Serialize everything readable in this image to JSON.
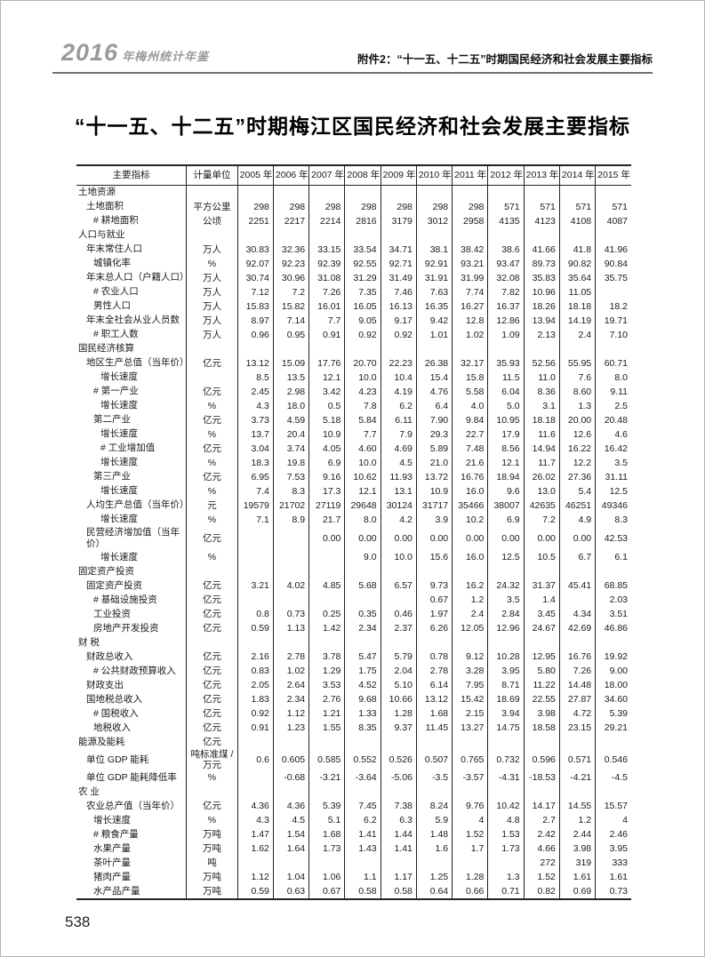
{
  "header": {
    "logo_year": "2016",
    "logo_suffix": "年梅州统计年鉴",
    "attachment": "附件2：“十一五、十二五”时期国民经济和社会发展主要指标"
  },
  "title": "“十一五、十二五”时期梅江区国民经济和社会发展主要指标",
  "page_number": "538",
  "table": {
    "columns": [
      "主要指标",
      "计量单位",
      "2005 年",
      "2006 年",
      "2007 年",
      "2008 年",
      "2009 年",
      "2010 年",
      "2011 年",
      "2012 年",
      "2013 年",
      "2014 年",
      "2015 年"
    ],
    "rows": [
      {
        "label": "土地资源",
        "unit": "",
        "indent": 0,
        "section": true,
        "values": [
          "",
          "",
          "",
          "",
          "",
          "",
          "",
          "",
          "",
          "",
          ""
        ]
      },
      {
        "label": "土地面积",
        "unit": "平方公里",
        "indent": 1,
        "values": [
          "298",
          "298",
          "298",
          "298",
          "298",
          "298",
          "298",
          "571",
          "571",
          "571",
          "571"
        ]
      },
      {
        "label": "# 耕地面积",
        "unit": "公顷",
        "indent": 2,
        "values": [
          "2251",
          "2217",
          "2214",
          "2816",
          "3179",
          "3012",
          "2958",
          "4135",
          "4123",
          "4108",
          "4087"
        ]
      },
      {
        "label": "人口与就业",
        "unit": "",
        "indent": 0,
        "section": true,
        "values": [
          "",
          "",
          "",
          "",
          "",
          "",
          "",
          "",
          "",
          "",
          ""
        ]
      },
      {
        "label": "年末常住人口",
        "unit": "万人",
        "indent": 1,
        "values": [
          "30.83",
          "32.36",
          "33.15",
          "33.54",
          "34.71",
          "38.1",
          "38.42",
          "38.6",
          "41.66",
          "41.8",
          "41.96"
        ]
      },
      {
        "label": "城镇化率",
        "unit": "%",
        "indent": 2,
        "values": [
          "92.07",
          "92.23",
          "92.39",
          "92.55",
          "92.71",
          "92.91",
          "93.21",
          "93.47",
          "89.73",
          "90.82",
          "90.84"
        ]
      },
      {
        "label": "年末总人口（户籍人口）",
        "unit": "万人",
        "indent": 1,
        "values": [
          "30.74",
          "30.96",
          "31.08",
          "31.29",
          "31.49",
          "31.91",
          "31.99",
          "32.08",
          "35.83",
          "35.64",
          "35.75"
        ]
      },
      {
        "label": "# 农业人口",
        "unit": "万人",
        "indent": 2,
        "values": [
          "7.12",
          "7.2",
          "7.26",
          "7.35",
          "7.46",
          "7.63",
          "7.74",
          "7.82",
          "10.96",
          "11.05",
          ""
        ]
      },
      {
        "label": "男性人口",
        "unit": "万人",
        "indent": 2,
        "values": [
          "15.83",
          "15.82",
          "16.01",
          "16.05",
          "16.13",
          "16.35",
          "16.27",
          "16.37",
          "18.26",
          "18.18",
          "18.2"
        ]
      },
      {
        "label": "年末全社会从业人员数",
        "unit": "万人",
        "indent": 1,
        "values": [
          "8.97",
          "7.14",
          "7.7",
          "9.05",
          "9.17",
          "9.42",
          "12.8",
          "12.86",
          "13.94",
          "14.19",
          "19.71"
        ]
      },
      {
        "label": "# 职工人数",
        "unit": "万人",
        "indent": 2,
        "values": [
          "0.96",
          "0.95",
          "0.91",
          "0.92",
          "0.92",
          "1.01",
          "1.02",
          "1.09",
          "2.13",
          "2.4",
          "7.10"
        ]
      },
      {
        "label": "国民经济核算",
        "unit": "",
        "indent": 0,
        "section": true,
        "values": [
          "",
          "",
          "",
          "",
          "",
          "",
          "",
          "",
          "",
          "",
          ""
        ]
      },
      {
        "label": "地区生产总值（当年价）",
        "unit": "亿元",
        "indent": 1,
        "values": [
          "13.12",
          "15.09",
          "17.76",
          "20.70",
          "22.23",
          "26.38",
          "32.17",
          "35.93",
          "52.56",
          "55.95",
          "60.71"
        ]
      },
      {
        "label": "增长速度",
        "unit": "",
        "indent": 3,
        "values": [
          "8.5",
          "13.5",
          "12.1",
          "10.0",
          "10.4",
          "15.4",
          "15.8",
          "11.5",
          "11.0",
          "7.6",
          "8.0"
        ]
      },
      {
        "label": "# 第一产业",
        "unit": "亿元",
        "indent": 2,
        "values": [
          "2.45",
          "2.98",
          "3.42",
          "4.23",
          "4.19",
          "4.76",
          "5.58",
          "6.04",
          "8.36",
          "8.60",
          "9.11"
        ]
      },
      {
        "label": "增长速度",
        "unit": "%",
        "indent": 3,
        "values": [
          "4.3",
          "18.0",
          "0.5",
          "7.8",
          "6.2",
          "6.4",
          "4.0",
          "5.0",
          "3.1",
          "1.3",
          "2.5"
        ]
      },
      {
        "label": "第二产业",
        "unit": "亿元",
        "indent": 2,
        "values": [
          "3.73",
          "4.59",
          "5.18",
          "5.84",
          "6.11",
          "7.90",
          "9.84",
          "10.95",
          "18.18",
          "20.00",
          "20.48"
        ]
      },
      {
        "label": "增长速度",
        "unit": "%",
        "indent": 3,
        "values": [
          "13.7",
          "20.4",
          "10.9",
          "7.7",
          "7.9",
          "29.3",
          "22.7",
          "17.9",
          "11.6",
          "12.6",
          "4.6"
        ]
      },
      {
        "label": "# 工业增加值",
        "unit": "亿元",
        "indent": 3,
        "values": [
          "3.04",
          "3.74",
          "4.05",
          "4.60",
          "4.69",
          "5.89",
          "7.48",
          "8.56",
          "14.94",
          "16.22",
          "16.42"
        ]
      },
      {
        "label": "增长速度",
        "unit": "%",
        "indent": 3,
        "values": [
          "18.3",
          "19.8",
          "6.9",
          "10.0",
          "4.5",
          "21.0",
          "21.6",
          "12.1",
          "11.7",
          "12.2",
          "3.5"
        ]
      },
      {
        "label": "第三产业",
        "unit": "亿元",
        "indent": 2,
        "values": [
          "6.95",
          "7.53",
          "9.16",
          "10.62",
          "11.93",
          "13.72",
          "16.76",
          "18.94",
          "26.02",
          "27.36",
          "31.11"
        ]
      },
      {
        "label": "增长速度",
        "unit": "%",
        "indent": 3,
        "values": [
          "7.4",
          "8.3",
          "17.3",
          "12.1",
          "13.1",
          "10.9",
          "16.0",
          "9.6",
          "13.0",
          "5.4",
          "12.5"
        ]
      },
      {
        "label": "人均生产总值（当年价）",
        "unit": "元",
        "indent": 1,
        "values": [
          "19579",
          "21702",
          "27119",
          "29648",
          "30124",
          "31717",
          "35466",
          "38007",
          "42635",
          "46251",
          "49346"
        ]
      },
      {
        "label": "增长速度",
        "unit": "%",
        "indent": 3,
        "values": [
          "7.1",
          "8.9",
          "21.7",
          "8.0",
          "4.2",
          "3.9",
          "10.2",
          "6.9",
          "7.2",
          "4.9",
          "8.3"
        ]
      },
      {
        "label": "民营经济增加值（当年价）",
        "unit": "亿元",
        "indent": 1,
        "values": [
          "",
          "",
          "0.00",
          "0.00",
          "0.00",
          "0.00",
          "0.00",
          "0.00",
          "0.00",
          "0.00",
          "42.53"
        ]
      },
      {
        "label": "增长速度",
        "unit": "%",
        "indent": 3,
        "values": [
          "",
          "",
          "",
          "9.0",
          "10.0",
          "15.6",
          "16.0",
          "12.5",
          "10.5",
          "6.7",
          "6.1"
        ]
      },
      {
        "label": "固定资产投资",
        "unit": "",
        "indent": 0,
        "section": true,
        "values": [
          "",
          "",
          "",
          "",
          "",
          "",
          "",
          "",
          "",
          "",
          ""
        ]
      },
      {
        "label": "固定资产投资",
        "unit": "亿元",
        "indent": 1,
        "values": [
          "3.21",
          "4.02",
          "4.85",
          "5.68",
          "6.57",
          "9.73",
          "16.2",
          "24.32",
          "31.37",
          "45.41",
          "68.85"
        ]
      },
      {
        "label": "# 基础设施投资",
        "unit": "亿元",
        "indent": 2,
        "values": [
          "",
          "",
          "",
          "",
          "",
          "0.67",
          "1.2",
          "3.5",
          "1.4",
          "",
          "2.03"
        ]
      },
      {
        "label": "工业投资",
        "unit": "亿元",
        "indent": 2,
        "values": [
          "0.8",
          "0.73",
          "0.25",
          "0.35",
          "0.46",
          "1.97",
          "2.4",
          "2.84",
          "3.45",
          "4.34",
          "3.51"
        ]
      },
      {
        "label": "房地产开发投资",
        "unit": "亿元",
        "indent": 2,
        "values": [
          "0.59",
          "1.13",
          "1.42",
          "2.34",
          "2.37",
          "6.26",
          "12.05",
          "12.96",
          "24.67",
          "42.69",
          "46.86"
        ]
      },
      {
        "label": "财 税",
        "unit": "",
        "indent": 0,
        "section": true,
        "values": [
          "",
          "",
          "",
          "",
          "",
          "",
          "",
          "",
          "",
          "",
          ""
        ]
      },
      {
        "label": "财政总收入",
        "unit": "亿元",
        "indent": 1,
        "values": [
          "2.16",
          "2.78",
          "3.78",
          "5.47",
          "5.79",
          "0.78",
          "9.12",
          "10.28",
          "12.95",
          "16.76",
          "19.92"
        ]
      },
      {
        "label": "# 公共财政预算收入",
        "unit": "亿元",
        "indent": 2,
        "values": [
          "0.83",
          "1.02",
          "1.29",
          "1.75",
          "2.04",
          "2.78",
          "3.28",
          "3.95",
          "5.80",
          "7.26",
          "9.00"
        ]
      },
      {
        "label": "财政支出",
        "unit": "亿元",
        "indent": 1,
        "values": [
          "2.05",
          "2.64",
          "3.53",
          "4.52",
          "5.10",
          "6.14",
          "7.95",
          "8.71",
          "11.22",
          "14.48",
          "18.00"
        ]
      },
      {
        "label": "国地税总收入",
        "unit": "亿元",
        "indent": 1,
        "values": [
          "1.83",
          "2.34",
          "2.76",
          "9.68",
          "10.66",
          "13.12",
          "15.42",
          "18.69",
          "22.55",
          "27.87",
          "34.60"
        ]
      },
      {
        "label": "# 国税收入",
        "unit": "亿元",
        "indent": 2,
        "values": [
          "0.92",
          "1.12",
          "1.21",
          "1.33",
          "1.28",
          "1.68",
          "2.15",
          "3.94",
          "3.98",
          "4.72",
          "5.39"
        ]
      },
      {
        "label": "地税收入",
        "unit": "亿元",
        "indent": 2,
        "values": [
          "0.91",
          "1.23",
          "1.55",
          "8.35",
          "9.37",
          "11.45",
          "13.27",
          "14.75",
          "18.58",
          "23.15",
          "29.21"
        ]
      },
      {
        "label": "能源及能耗",
        "unit": "亿元",
        "indent": 0,
        "section": true,
        "values": [
          "",
          "",
          "",
          "",
          "",
          "",
          "",
          "",
          "",
          "",
          ""
        ]
      },
      {
        "label": "单位 GDP 能耗",
        "unit": "吨标准煤 / 万元",
        "indent": 1,
        "values": [
          "0.6",
          "0.605",
          "0.585",
          "0.552",
          "0.526",
          "0.507",
          "0.765",
          "0.732",
          "0.596",
          "0.571",
          "0.546"
        ]
      },
      {
        "label": "单位 GDP 能耗降低率",
        "unit": "%",
        "indent": 1,
        "values": [
          "",
          "-0.68",
          "-3.21",
          "-3.64",
          "-5.06",
          "-3.5",
          "-3.57",
          "-4.31",
          "-18.53",
          "-4.21",
          "-4.5"
        ]
      },
      {
        "label": "农 业",
        "unit": "",
        "indent": 0,
        "section": true,
        "values": [
          "",
          "",
          "",
          "",
          "",
          "",
          "",
          "",
          "",
          "",
          ""
        ]
      },
      {
        "label": "农业总产值（当年价）",
        "unit": "亿元",
        "indent": 1,
        "values": [
          "4.36",
          "4.36",
          "5.39",
          "7.45",
          "7.38",
          "8.24",
          "9.76",
          "10.42",
          "14.17",
          "14.55",
          "15.57"
        ]
      },
      {
        "label": "增长速度",
        "unit": "%",
        "indent": 2,
        "values": [
          "4.3",
          "4.5",
          "5.1",
          "6.2",
          "6.3",
          "5.9",
          "4",
          "4.8",
          "2.7",
          "1.2",
          "4"
        ]
      },
      {
        "label": "# 粮食产量",
        "unit": "万吨",
        "indent": 2,
        "values": [
          "1.47",
          "1.54",
          "1.68",
          "1.41",
          "1.44",
          "1.48",
          "1.52",
          "1.53",
          "2.42",
          "2.44",
          "2.46"
        ]
      },
      {
        "label": "水果产量",
        "unit": "万吨",
        "indent": 2,
        "values": [
          "1.62",
          "1.64",
          "1.73",
          "1.43",
          "1.41",
          "1.6",
          "1.7",
          "1.73",
          "4.66",
          "3.98",
          "3.95"
        ]
      },
      {
        "label": "茶叶产量",
        "unit": "吨",
        "indent": 2,
        "values": [
          "",
          "",
          "",
          "",
          "",
          "",
          "",
          "",
          "272",
          "319",
          "333"
        ]
      },
      {
        "label": "猪肉产量",
        "unit": "万吨",
        "indent": 2,
        "values": [
          "1.12",
          "1.04",
          "1.06",
          "1.1",
          "1.17",
          "1.25",
          "1.28",
          "1.3",
          "1.52",
          "1.61",
          "1.61"
        ]
      },
      {
        "label": "水产品产量",
        "unit": "万吨",
        "indent": 2,
        "values": [
          "0.59",
          "0.63",
          "0.67",
          "0.58",
          "0.58",
          "0.64",
          "0.66",
          "0.71",
          "0.82",
          "0.69",
          "0.73"
        ]
      }
    ]
  }
}
